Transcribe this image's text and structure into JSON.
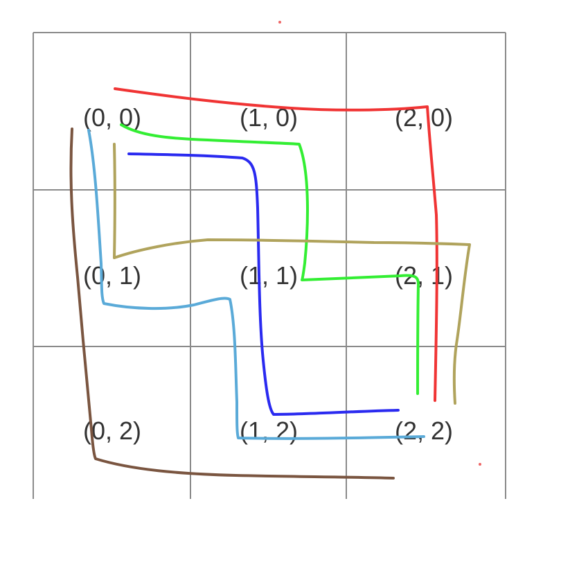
{
  "grid": {
    "columns": 3,
    "rows": 3,
    "line_color": "#8a8a8a"
  },
  "cells": [
    {
      "label": "(0, 0)",
      "col": 0,
      "row": 0
    },
    {
      "label": "(1, 0)",
      "col": 1,
      "row": 0
    },
    {
      "label": "(2, 0)",
      "col": 2,
      "row": 0
    },
    {
      "label": "(0, 1)",
      "col": 0,
      "row": 1
    },
    {
      "label": "(1, 1)",
      "col": 1,
      "row": 1
    },
    {
      "label": "(2, 1)",
      "col": 2,
      "row": 1
    },
    {
      "label": "(0, 2)",
      "col": 0,
      "row": 2
    },
    {
      "label": "(1, 2)",
      "col": 1,
      "row": 2
    },
    {
      "label": "(2, 2)",
      "col": 2,
      "row": 2
    }
  ],
  "paths": [
    {
      "id": "red",
      "color": "#f03434"
    },
    {
      "id": "green",
      "color": "#33ee33"
    },
    {
      "id": "blue",
      "color": "#2a2af0"
    },
    {
      "id": "olive",
      "color": "#b0a35c"
    },
    {
      "id": "light-blue",
      "color": "#5aaad8"
    },
    {
      "id": "brown",
      "color": "#7a5540"
    }
  ],
  "stray_dot_color": "#ee6666"
}
